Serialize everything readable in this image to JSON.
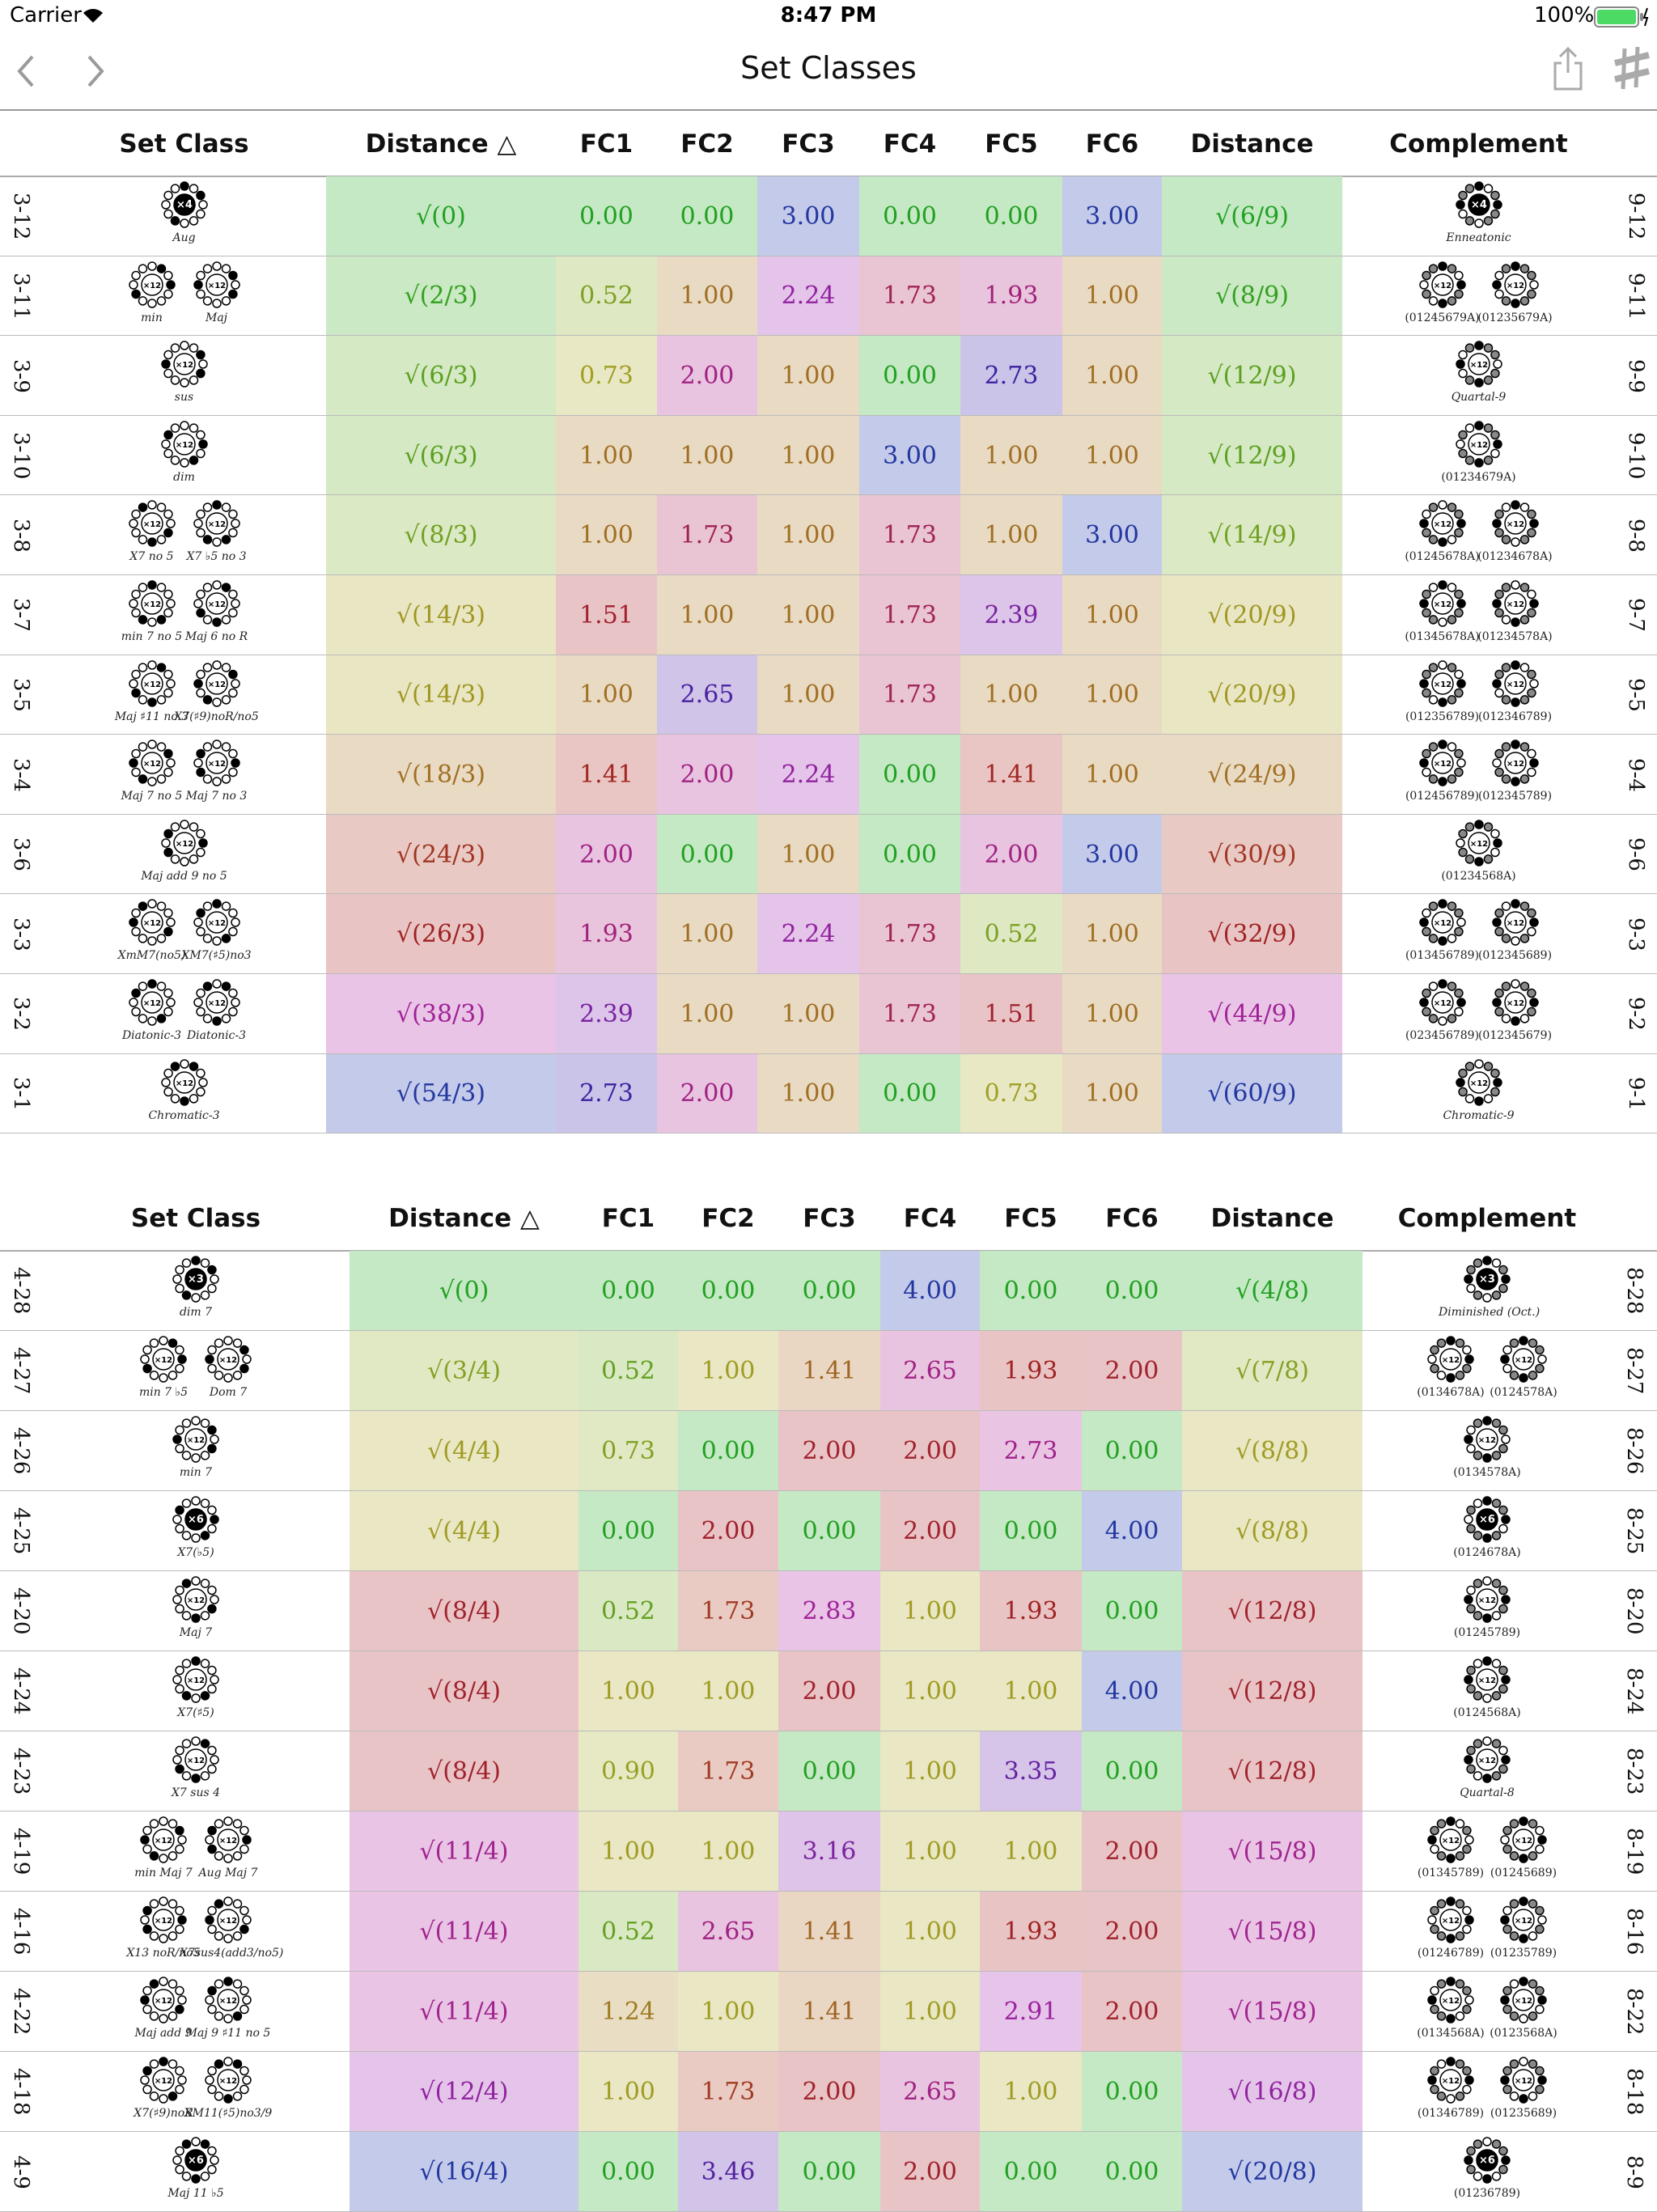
{
  "status_bar": {
    "carrier": "Carrier",
    "time": "8:47 PM",
    "battery": "100%"
  },
  "nav": {
    "title": "Set Classes"
  },
  "tables": [
    {
      "headers": [
        "Set Class",
        "Distance △",
        "FC1",
        "FC2",
        "FC3",
        "FC4",
        "FC5",
        "FC6",
        "Distance",
        "Complement"
      ],
      "rows": [
        {
          "name": "3-12",
          "chords": [
            {
              "symbol": "×4",
              "label": "Aug"
            }
          ],
          "distance": "√(0)",
          "fc": [
            "0.00",
            "0.00",
            "3.00",
            "0.00",
            "0.00",
            "3.00"
          ],
          "complement_distance": "√(6/9)",
          "complement": [
            {
              "symbol": "×4",
              "label": "Enneatonic"
            }
          ],
          "complement_name": "9-12"
        },
        {
          "name": "3-11",
          "chords": [
            {
              "symbol": "×12",
              "label": "min"
            },
            {
              "symbol": "×12",
              "label": "Maj"
            }
          ],
          "distance": "√(2/3)",
          "fc": [
            "0.52",
            "1.00",
            "2.24",
            "1.73",
            "1.93",
            "1.00"
          ],
          "complement_distance": "√(8/9)",
          "complement": [
            {
              "symbol": "×12",
              "label": "(01245679A)"
            },
            {
              "symbol": "×12",
              "label": "(01235679A)"
            }
          ],
          "complement_name": "9-11"
        },
        {
          "name": "3-9",
          "chords": [
            {
              "symbol": "×12",
              "label": "sus"
            }
          ],
          "distance": "√(6/3)",
          "fc": [
            "0.73",
            "2.00",
            "1.00",
            "0.00",
            "2.73",
            "1.00"
          ],
          "complement_distance": "√(12/9)",
          "complement": [
            {
              "symbol": "×12",
              "label": "Quartal-9"
            }
          ],
          "complement_name": "9-9"
        },
        {
          "name": "3-10",
          "chords": [
            {
              "symbol": "×12",
              "label": "dim"
            }
          ],
          "distance": "√(6/3)",
          "fc": [
            "1.00",
            "1.00",
            "1.00",
            "3.00",
            "1.00",
            "1.00"
          ],
          "complement_distance": "√(12/9)",
          "complement": [
            {
              "symbol": "×12",
              "label": "(01234679A)"
            }
          ],
          "complement_name": "9-10"
        },
        {
          "name": "3-8",
          "chords": [
            {
              "symbol": "×12",
              "label": "X7 no 5"
            },
            {
              "symbol": "×12",
              "label": "X7 ♭5 no 3"
            }
          ],
          "distance": "√(8/3)",
          "fc": [
            "1.00",
            "1.73",
            "1.00",
            "1.73",
            "1.00",
            "3.00"
          ],
          "complement_distance": "√(14/9)",
          "complement": [
            {
              "symbol": "×12",
              "label": "(01245678A)"
            },
            {
              "symbol": "×12",
              "label": "(01234678A)"
            }
          ],
          "complement_name": "9-8"
        },
        {
          "name": "3-7",
          "chords": [
            {
              "symbol": "×12",
              "label": "min 7 no 5"
            },
            {
              "symbol": "×12",
              "label": "Maj 6 no R"
            }
          ],
          "distance": "√(14/3)",
          "fc": [
            "1.51",
            "1.00",
            "1.00",
            "1.73",
            "2.39",
            "1.00"
          ],
          "complement_distance": "√(20/9)",
          "complement": [
            {
              "symbol": "×12",
              "label": "(01345678A)"
            },
            {
              "symbol": "×12",
              "label": "(01234578A)"
            }
          ],
          "complement_name": "9-7"
        },
        {
          "name": "3-5",
          "chords": [
            {
              "symbol": "×12",
              "label": "Maj ♯11 no 3"
            },
            {
              "symbol": "×12",
              "label": "X7(♯9)noR/no5"
            }
          ],
          "distance": "√(14/3)",
          "fc": [
            "1.00",
            "2.65",
            "1.00",
            "1.73",
            "1.00",
            "1.00"
          ],
          "complement_distance": "√(20/9)",
          "complement": [
            {
              "symbol": "×12",
              "label": "(012356789)"
            },
            {
              "symbol": "×12",
              "label": "(012346789)"
            }
          ],
          "complement_name": "9-5"
        },
        {
          "name": "3-4",
          "chords": [
            {
              "symbol": "×12",
              "label": "Maj 7 no 5"
            },
            {
              "symbol": "×12",
              "label": "Maj 7 no 3"
            }
          ],
          "distance": "√(18/3)",
          "fc": [
            "1.41",
            "2.00",
            "2.24",
            "0.00",
            "1.41",
            "1.00"
          ],
          "complement_distance": "√(24/9)",
          "complement": [
            {
              "symbol": "×12",
              "label": "(012456789)"
            },
            {
              "symbol": "×12",
              "label": "(012345789)"
            }
          ],
          "complement_name": "9-4"
        },
        {
          "name": "3-6",
          "chords": [
            {
              "symbol": "×12",
              "label": "Maj add 9 no 5"
            }
          ],
          "distance": "√(24/3)",
          "fc": [
            "2.00",
            "0.00",
            "1.00",
            "0.00",
            "2.00",
            "3.00"
          ],
          "complement_distance": "√(30/9)",
          "complement": [
            {
              "symbol": "×12",
              "label": "(01234568A)"
            }
          ],
          "complement_name": "9-6"
        },
        {
          "name": "3-3",
          "chords": [
            {
              "symbol": "×12",
              "label": "XmM7(no5)"
            },
            {
              "symbol": "×12",
              "label": "XM7(♯5)no3"
            }
          ],
          "distance": "√(26/3)",
          "fc": [
            "1.93",
            "1.00",
            "2.24",
            "1.73",
            "0.52",
            "1.00"
          ],
          "complement_distance": "√(32/9)",
          "complement": [
            {
              "symbol": "×12",
              "label": "(013456789)"
            },
            {
              "symbol": "×12",
              "label": "(012345689)"
            }
          ],
          "complement_name": "9-3"
        },
        {
          "name": "3-2",
          "chords": [
            {
              "symbol": "×12",
              "label": "Diatonic-3"
            },
            {
              "symbol": "×12",
              "label": "Diatonic-3"
            }
          ],
          "distance": "√(38/3)",
          "fc": [
            "2.39",
            "1.00",
            "1.00",
            "1.73",
            "1.51",
            "1.00"
          ],
          "complement_distance": "√(44/9)",
          "complement": [
            {
              "symbol": "×12",
              "label": "(023456789)"
            },
            {
              "symbol": "×12",
              "label": "(012345679)"
            }
          ],
          "complement_name": "9-2"
        },
        {
          "name": "3-1",
          "chords": [
            {
              "symbol": "×12",
              "label": "Chromatic-3"
            }
          ],
          "distance": "√(54/3)",
          "fc": [
            "2.73",
            "2.00",
            "1.00",
            "0.00",
            "0.73",
            "1.00"
          ],
          "complement_distance": "√(60/9)",
          "complement": [
            {
              "symbol": "×12",
              "label": "Chromatic-9"
            }
          ],
          "complement_name": "9-1"
        }
      ]
    },
    {
      "headers": [
        "Set Class",
        "Distance △",
        "FC1",
        "FC2",
        "FC3",
        "FC4",
        "FC5",
        "FC6",
        "Distance",
        "Complement"
      ],
      "rows": [
        {
          "name": "4-28",
          "chords": [
            {
              "symbol": "×3",
              "label": "dim 7"
            }
          ],
          "distance": "√(0)",
          "fc": [
            "0.00",
            "0.00",
            "0.00",
            "4.00",
            "0.00",
            "0.00"
          ],
          "complement_distance": "√(4/8)",
          "complement": [
            {
              "symbol": "×3",
              "label": "Diminished (Oct.)"
            }
          ],
          "complement_name": "8-28"
        },
        {
          "name": "4-27",
          "chords": [
            {
              "symbol": "×12",
              "label": "min 7 ♭5"
            },
            {
              "symbol": "×12",
              "label": "Dom 7"
            }
          ],
          "distance": "√(3/4)",
          "fc": [
            "0.52",
            "1.00",
            "1.41",
            "2.65",
            "1.93",
            "2.00"
          ],
          "complement_distance": "√(7/8)",
          "complement": [
            {
              "symbol": "×12",
              "label": "(0134678A)"
            },
            {
              "symbol": "×12",
              "label": "(0124578A)"
            }
          ],
          "complement_name": "8-27"
        },
        {
          "name": "4-26",
          "chords": [
            {
              "symbol": "×12",
              "label": "min 7"
            }
          ],
          "distance": "√(4/4)",
          "fc": [
            "0.73",
            "0.00",
            "2.00",
            "2.00",
            "2.73",
            "0.00"
          ],
          "complement_distance": "√(8/8)",
          "complement": [
            {
              "symbol": "×12",
              "label": "(0134578A)"
            }
          ],
          "complement_name": "8-26"
        },
        {
          "name": "4-25",
          "chords": [
            {
              "symbol": "×6",
              "label": "X7(♭5)"
            }
          ],
          "distance": "√(4/4)",
          "fc": [
            "0.00",
            "2.00",
            "0.00",
            "2.00",
            "0.00",
            "4.00"
          ],
          "complement_distance": "√(8/8)",
          "complement": [
            {
              "symbol": "×6",
              "label": "(0124678A)"
            }
          ],
          "complement_name": "8-25"
        },
        {
          "name": "4-20",
          "chords": [
            {
              "symbol": "×12",
              "label": "Maj 7"
            }
          ],
          "distance": "√(8/4)",
          "fc": [
            "0.52",
            "1.73",
            "2.83",
            "1.00",
            "1.93",
            "0.00"
          ],
          "complement_distance": "√(12/8)",
          "complement": [
            {
              "symbol": "×12",
              "label": "(01245789)"
            }
          ],
          "complement_name": "8-20"
        },
        {
          "name": "4-24",
          "chords": [
            {
              "symbol": "×12",
              "label": "X7(♯5)"
            }
          ],
          "distance": "√(8/4)",
          "fc": [
            "1.00",
            "1.00",
            "2.00",
            "1.00",
            "1.00",
            "4.00"
          ],
          "complement_distance": "√(12/8)",
          "complement": [
            {
              "symbol": "×12",
              "label": "(0124568A)"
            }
          ],
          "complement_name": "8-24"
        },
        {
          "name": "4-23",
          "chords": [
            {
              "symbol": "×12",
              "label": "X7 sus 4"
            }
          ],
          "distance": "√(8/4)",
          "fc": [
            "0.90",
            "1.73",
            "0.00",
            "1.00",
            "3.35",
            "0.00"
          ],
          "complement_distance": "√(12/8)",
          "complement": [
            {
              "symbol": "×12",
              "label": "Quartal-8"
            }
          ],
          "complement_name": "8-23"
        },
        {
          "name": "4-19",
          "chords": [
            {
              "symbol": "×12",
              "label": "min Maj 7"
            },
            {
              "symbol": "×12",
              "label": "Aug Maj 7"
            }
          ],
          "distance": "√(11/4)",
          "fc": [
            "1.00",
            "1.00",
            "3.16",
            "1.00",
            "1.00",
            "2.00"
          ],
          "complement_distance": "√(15/8)",
          "complement": [
            {
              "symbol": "×12",
              "label": "(01345789)"
            },
            {
              "symbol": "×12",
              "label": "(01245689)"
            }
          ],
          "complement_name": "8-19"
        },
        {
          "name": "4-16",
          "chords": [
            {
              "symbol": "×12",
              "label": "X13 noR/no5"
            },
            {
              "symbol": "×12",
              "label": "X7sus4(add3/no5)"
            }
          ],
          "distance": "√(11/4)",
          "fc": [
            "0.52",
            "2.65",
            "1.41",
            "1.00",
            "1.93",
            "2.00"
          ],
          "complement_distance": "√(15/8)",
          "complement": [
            {
              "symbol": "×12",
              "label": "(01246789)"
            },
            {
              "symbol": "×12",
              "label": "(01235789)"
            }
          ],
          "complement_name": "8-16"
        },
        {
          "name": "4-22",
          "chords": [
            {
              "symbol": "×12",
              "label": "Maj add 9"
            },
            {
              "symbol": "×12",
              "label": "Maj 9 ♯11 no 5"
            }
          ],
          "distance": "√(11/4)",
          "fc": [
            "1.24",
            "1.00",
            "1.41",
            "1.00",
            "2.91",
            "2.00"
          ],
          "complement_distance": "√(15/8)",
          "complement": [
            {
              "symbol": "×12",
              "label": "(0134568A)"
            },
            {
              "symbol": "×12",
              "label": "(0123568A)"
            }
          ],
          "complement_name": "8-22"
        },
        {
          "name": "4-18",
          "chords": [
            {
              "symbol": "×12",
              "label": "X7(♯9)noR"
            },
            {
              "symbol": "×12",
              "label": "XM11(♯5)no3/9"
            }
          ],
          "distance": "√(12/4)",
          "fc": [
            "1.00",
            "1.73",
            "2.00",
            "2.65",
            "1.00",
            "0.00"
          ],
          "complement_distance": "√(16/8)",
          "complement": [
            {
              "symbol": "×12",
              "label": "(01346789)"
            },
            {
              "symbol": "×12",
              "label": "(01235689)"
            }
          ],
          "complement_name": "8-18"
        },
        {
          "name": "4-9",
          "chords": [
            {
              "symbol": "×6",
              "label": "Maj 11 ♭5"
            }
          ],
          "distance": "√(16/4)",
          "fc": [
            "0.00",
            "3.46",
            "0.00",
            "2.00",
            "0.00",
            "0.00"
          ],
          "complement_distance": "√(20/8)",
          "complement": [
            {
              "symbol": "×6",
              "label": "(01236789)"
            }
          ],
          "complement_name": "8-9"
        }
      ]
    }
  ]
}
